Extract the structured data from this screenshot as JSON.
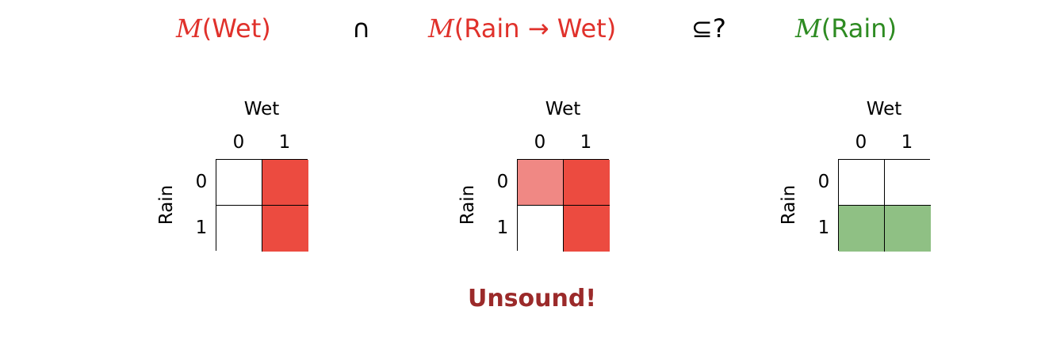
{
  "header": {
    "left": {
      "script": "M",
      "text": "(Wet)"
    },
    "op1": "∩",
    "middle": {
      "script": "M",
      "text": "(Rain → Wet)"
    },
    "op2": "⊆?",
    "right": {
      "script": "M",
      "text": "(Rain)"
    }
  },
  "grids": [
    {
      "title": "Wet",
      "cols": [
        "0",
        "1"
      ],
      "rows": [
        "0",
        "1"
      ],
      "ylabel": "Rain",
      "cells": [
        [
          "#ffffff",
          "#ec4b40"
        ],
        [
          "#ffffff",
          "#ec4b40"
        ]
      ]
    },
    {
      "title": "Wet",
      "cols": [
        "0",
        "1"
      ],
      "rows": [
        "0",
        "1"
      ],
      "ylabel": "Rain",
      "cells": [
        [
          "#f08884",
          "#ec4b40"
        ],
        [
          "#ffffff",
          "#ec4b40"
        ]
      ]
    },
    {
      "title": "Wet",
      "cols": [
        "0",
        "1"
      ],
      "rows": [
        "0",
        "1"
      ],
      "ylabel": "Rain",
      "cells": [
        [
          "#ffffff",
          "#ffffff"
        ],
        [
          "#8fc084",
          "#8fc084"
        ]
      ]
    }
  ],
  "verdict": "Unsound!",
  "colors": {
    "red": "#e0312b",
    "green": "#2e8b22",
    "verdict": "#9b2a2a"
  }
}
